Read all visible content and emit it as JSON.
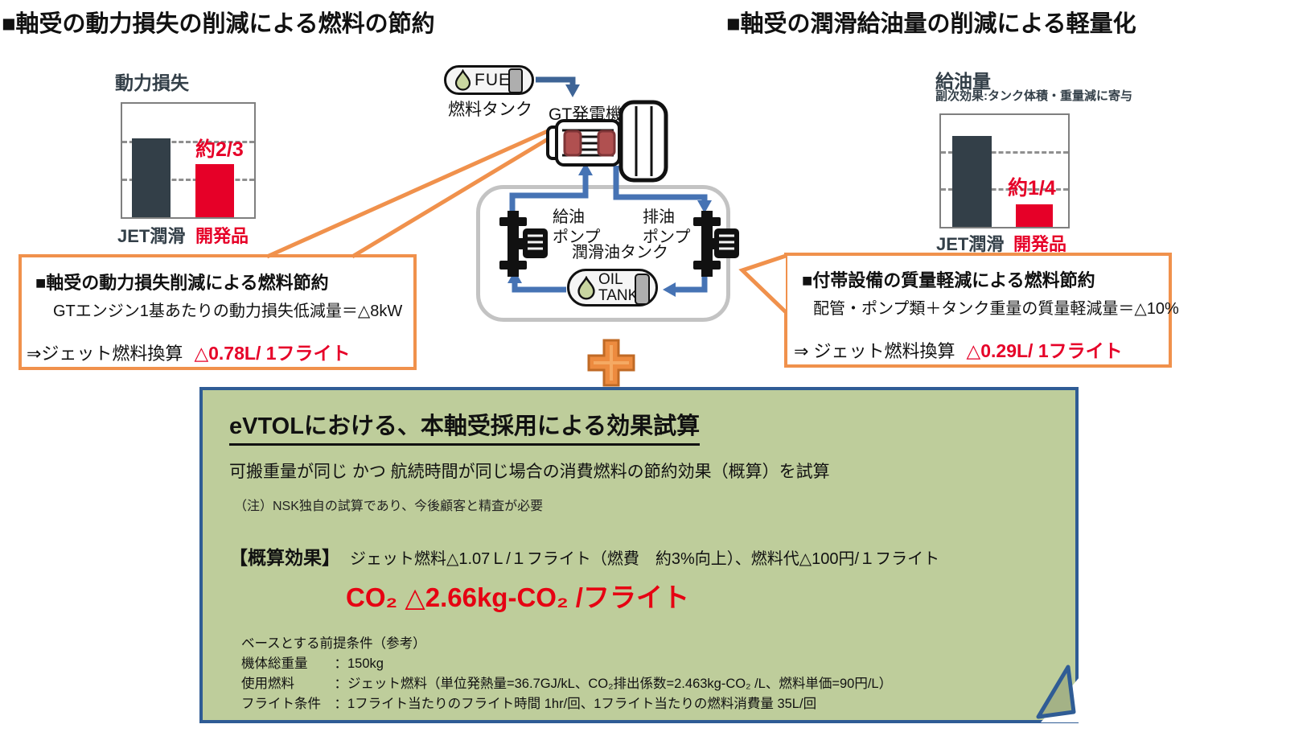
{
  "page": {
    "heading_left": "■軸受の動力損失の削減による燃料の節約",
    "heading_right": "■軸受の潤滑給油量の削減による軽量化"
  },
  "chart_data": [
    {
      "type": "bar",
      "title": "動力損失",
      "categories": [
        "JET潤滑",
        "開発品"
      ],
      "values": [
        1.0,
        0.67
      ],
      "annotation": "約2/3",
      "series_colors": [
        "#333F48",
        "#E60028"
      ],
      "grid": "horizontal-dashed-thirds",
      "ylabel": "",
      "xlabel": ""
    },
    {
      "type": "bar",
      "title": "給油量",
      "subtitle": "副次効果:タンク体積・重量減に寄与",
      "categories": [
        "JET潤滑",
        "開発品"
      ],
      "values": [
        1.0,
        0.25
      ],
      "annotation": "約1/4",
      "series_colors": [
        "#333F48",
        "#E60028"
      ],
      "grid": "horizontal-dashed-thirds",
      "ylabel": "",
      "xlabel": ""
    }
  ],
  "diagram": {
    "fuel_tank_text": "FUEL",
    "fuel_tank_label": "燃料タンク",
    "generator_label": "GT発電機",
    "supply_pump": [
      "給油",
      "ポンプ"
    ],
    "drain_pump": [
      "排油",
      "ポンプ"
    ],
    "oil_tank_title": "潤滑油タンク",
    "oil_tank_lines": [
      "OIL",
      "TANK"
    ],
    "plus_sign": "+"
  },
  "callout_left": {
    "title": "■軸受の動力損失削減による燃料節約",
    "detail": "GTエンジン1基あたりの動力損失低減量＝△8kW",
    "result_prefix": "⇒ジェット燃料換算",
    "result_value": "△0.78L/ 1フライト"
  },
  "callout_right": {
    "title": "■付帯設備の質量軽減による燃料節約",
    "detail": "配管・ポンプ類＋タンク重量の質量軽減量＝△10%",
    "result_prefix": "⇒ ジェット燃料換算",
    "result_value": "△0.29L/ 1フライト"
  },
  "summary_box": {
    "title": "eVTOLにおける、本軸受採用による効果試算",
    "subtitle": "可搬重量が同じ かつ 航続時間が同じ場合の消費燃料の節約効果（概算）を試算",
    "note": "（注）NSK独自の試算であり、今後顧客と精査が必要",
    "effect_label": "【概算効果】",
    "effect_text": "ジェット燃料△1.07Ｌ/１フライト（燃費　約3%向上）、燃料代△100円/１フライト",
    "co2_text": "CO₂ △2.66kg-CO₂ /フライト",
    "assumptions": [
      "ベースとする前提条件（参考）",
      "機体総重量　　：150kg",
      "使用燃料　　　：ジェット燃料（単位発熱量=36.7GJ/kL、CO₂排出係数=2.463kg-CO₂ /L、燃料単価=90円/L）",
      "フライト条件　：1フライト当たりのフライト時間 1hr/回、1フライト当たりの燃料消費量 35L/回"
    ]
  },
  "colors": {
    "accent_red": "#E60028",
    "bar_dark": "#333F48",
    "callout_orange": "#F0914C",
    "plus_fill": "#ED8B3F",
    "plus_border": "#C06A25",
    "arrow_blue": "#4673B4",
    "summary_green": "#BECD9B",
    "summary_border_blue": "#2F5C95"
  }
}
